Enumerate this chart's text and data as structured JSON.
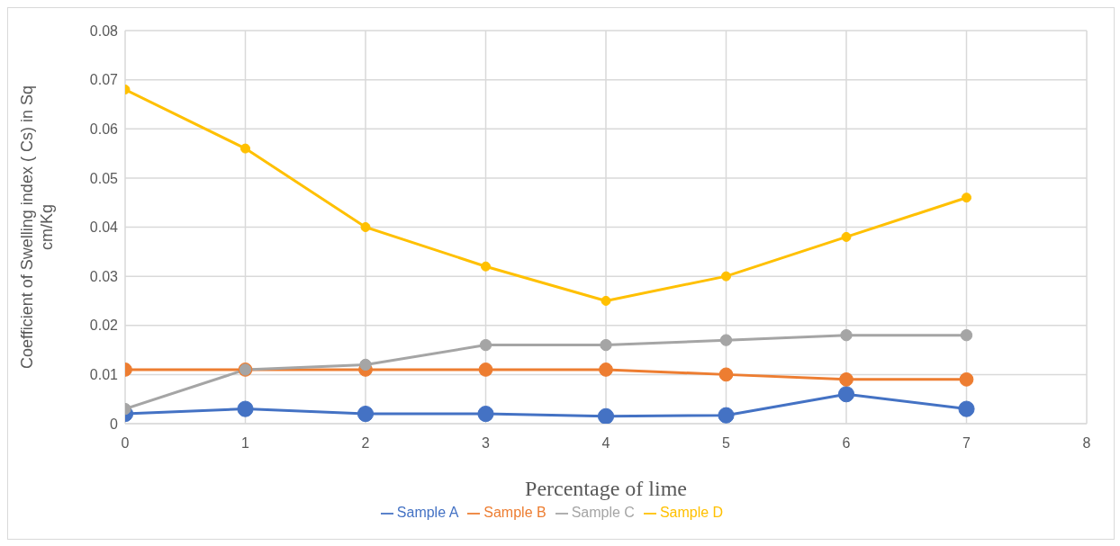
{
  "chart_data": {
    "type": "line",
    "xlabel": "Percentage of lime",
    "ylabel": "Coefficient of Swelling index ( Cs) in Sq cm/Kg",
    "x": [
      0,
      1,
      2,
      3,
      4,
      5,
      6,
      7
    ],
    "series": [
      {
        "name": "Sample A",
        "color": "#4472c4",
        "values": [
          0.002,
          0.003,
          0.002,
          0.002,
          0.0015,
          0.0017,
          0.006,
          0.003
        ]
      },
      {
        "name": "Sample B",
        "color": "#ed7d31",
        "values": [
          0.011,
          0.011,
          0.011,
          0.011,
          0.011,
          0.01,
          0.009,
          0.009
        ]
      },
      {
        "name": "Sample C",
        "color": "#a5a5a5",
        "values": [
          0.003,
          0.011,
          0.012,
          0.016,
          0.016,
          0.017,
          0.018,
          0.018
        ]
      },
      {
        "name": "Sample D",
        "color": "#ffc000",
        "values": [
          0.068,
          0.056,
          0.04,
          0.032,
          0.025,
          0.03,
          0.038,
          0.046
        ]
      }
    ],
    "xlim": [
      0,
      8
    ],
    "xticks": [
      0,
      1,
      2,
      3,
      4,
      5,
      6,
      7,
      8
    ],
    "ylim": [
      0,
      0.08
    ],
    "yticks": [
      0,
      0.01,
      0.02,
      0.03,
      0.04,
      0.05,
      0.06,
      0.07,
      0.08
    ],
    "grid": true,
    "legend": "bottom",
    "marker": "circle",
    "line_style": "solid"
  }
}
